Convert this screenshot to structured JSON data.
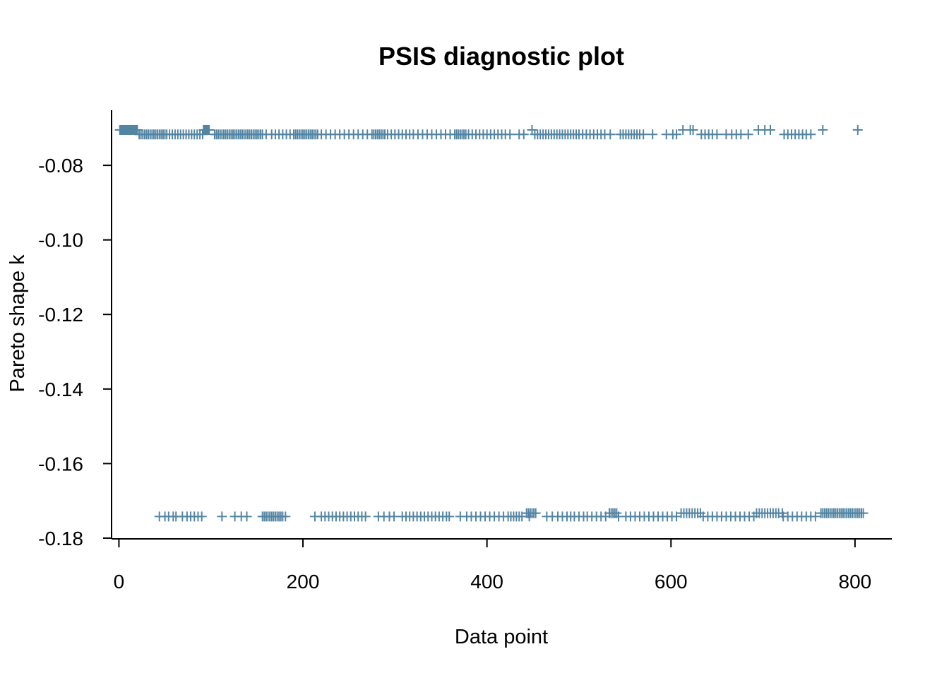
{
  "chart_data": {
    "type": "scatter",
    "title": "PSIS diagnostic plot",
    "xlabel": "Data point",
    "ylabel": "Pareto shape k",
    "xlim": [
      -8,
      840
    ],
    "ylim": [
      -0.1802,
      -0.0652
    ],
    "x_ticks": [
      0,
      200,
      400,
      600,
      800
    ],
    "x_tick_labels": [
      "0",
      "200",
      "400",
      "600",
      "800"
    ],
    "y_ticks": [
      -0.18,
      -0.16,
      -0.14,
      -0.12,
      -0.1,
      -0.08
    ],
    "y_tick_labels": [
      "-0.18",
      "-0.16",
      "-0.14",
      "-0.12",
      "-0.10",
      "-0.08"
    ],
    "marker": "plus",
    "color": "#5385a2",
    "grid": false,
    "series": [
      {
        "y": -0.0705,
        "x": [
          1,
          2,
          3,
          4,
          5,
          6,
          7,
          8,
          9,
          10,
          11,
          12,
          13,
          14,
          15,
          16,
          17,
          18,
          19,
          20,
          92,
          93,
          94,
          95,
          96,
          97,
          98,
          449,
          613,
          621,
          624,
          695,
          702,
          708,
          765,
          803
        ]
      },
      {
        "y": -0.0717,
        "x": [
          22,
          24,
          26,
          28,
          30,
          32,
          34,
          36,
          38,
          40,
          42,
          44,
          46,
          48,
          50,
          52,
          55,
          58,
          61,
          64,
          67,
          70,
          73,
          76,
          79,
          82,
          85,
          88,
          91,
          104,
          106,
          108,
          110,
          112,
          114,
          116,
          118,
          120,
          122,
          124,
          126,
          128,
          130,
          132,
          134,
          136,
          138,
          140,
          142,
          144,
          146,
          148,
          150,
          152,
          154,
          156,
          160,
          166,
          170,
          174,
          178,
          182,
          186,
          190,
          192,
          194,
          196,
          198,
          200,
          202,
          204,
          206,
          208,
          210,
          212,
          214,
          216,
          220,
          225,
          230,
          235,
          240,
          245,
          250,
          255,
          260,
          265,
          270,
          275,
          277,
          279,
          281,
          283,
          285,
          287,
          289,
          292,
          296,
          300,
          304,
          308,
          312,
          316,
          320,
          325,
          330,
          335,
          340,
          345,
          350,
          355,
          360,
          365,
          367,
          369,
          371,
          373,
          375,
          377,
          380,
          384,
          388,
          392,
          396,
          400,
          404,
          408,
          412,
          416,
          420,
          425,
          435,
          440,
          452,
          455,
          458,
          461,
          464,
          467,
          470,
          473,
          476,
          479,
          482,
          485,
          488,
          491,
          494,
          497,
          500,
          504,
          508,
          512,
          516,
          520,
          524,
          528,
          534,
          545,
          548,
          551,
          554,
          557,
          560,
          563,
          566,
          570,
          580,
          595,
          602,
          606,
          633,
          637,
          641,
          645,
          650,
          660,
          666,
          671,
          676,
          684,
          723,
          727,
          731,
          735,
          739,
          743,
          747,
          752
        ]
      },
      {
        "y": -0.1733,
        "x": [
          443,
          445,
          447,
          449,
          451,
          453,
          533,
          535,
          537,
          539,
          541,
          611,
          614,
          617,
          620,
          623,
          626,
          629,
          632,
          693,
          696,
          699,
          702,
          705,
          708,
          711,
          714,
          717,
          721,
          763,
          765,
          767,
          769,
          771,
          773,
          775,
          777,
          779,
          781,
          783,
          785,
          787,
          789,
          791,
          793,
          795,
          797,
          799,
          801,
          803,
          805,
          807,
          809
        ]
      },
      {
        "y": -0.1742,
        "x": [
          44,
          50,
          54,
          59,
          62,
          69,
          74,
          78,
          82,
          86,
          90,
          112,
          126,
          133,
          139,
          156,
          158,
          160,
          162,
          164,
          166,
          168,
          170,
          172,
          174,
          176,
          178,
          181,
          213,
          220,
          224,
          228,
          232,
          236,
          240,
          244,
          248,
          252,
          256,
          260,
          264,
          268,
          282,
          288,
          294,
          299,
          308,
          312,
          316,
          320,
          324,
          328,
          332,
          336,
          340,
          344,
          348,
          352,
          356,
          359,
          371,
          378,
          383,
          388,
          393,
          398,
          403,
          408,
          413,
          418,
          423,
          426,
          429,
          432,
          435,
          438,
          446,
          465,
          471,
          477,
          482,
          487,
          491,
          495,
          500,
          505,
          509,
          514,
          519,
          524,
          529,
          543,
          551,
          556,
          561,
          566,
          571,
          576,
          581,
          586,
          591,
          596,
          601,
          606,
          635,
          640,
          645,
          650,
          655,
          660,
          665,
          670,
          675,
          680,
          685,
          690,
          722,
          727,
          732,
          737,
          742,
          747,
          752,
          757
        ]
      }
    ]
  }
}
